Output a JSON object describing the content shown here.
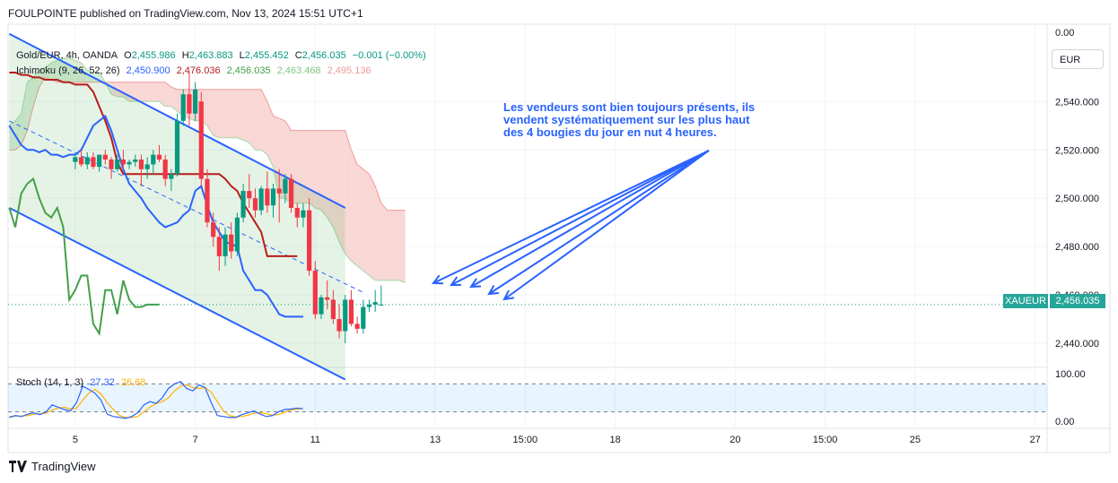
{
  "header": {
    "published": "FOULPOINTE published on TradingView.com, Nov 13, 2024 15:51 UTC+1"
  },
  "legend": {
    "symbol": "Gold/EUR, 4h, OANDA",
    "o_label": "O",
    "o_value": "2,455.986",
    "h_label": "H",
    "h_value": "2,463.883",
    "l_label": "L",
    "l_value": "2,455.452",
    "c_label": "C",
    "c_value": "2,456.035",
    "change": "−0.001 (−0.00%)",
    "ichimoku": "Ichimoku (9, 26, 52, 26)",
    "ichimoku_values": [
      "2,450.900",
      "2,476.036",
      "2,456.035",
      "2,463.468",
      "2,495.136"
    ],
    "stoch": "Stoch (14, 1, 3)",
    "stoch_values": [
      "27.32",
      "26.68"
    ]
  },
  "currency_button": "EUR",
  "price_tag": {
    "symbol": "XAUEUR",
    "value": "2,456.035"
  },
  "annotation": "Les vendeurs sont bien toujours présents, ils vendent systématiquement sur les plus haut des 4 bougies du jour en nut 4 heures.",
  "footer": {
    "brand": "TradingView"
  },
  "colors": {
    "up": "#089981",
    "down": "#f23645",
    "tenkan": "#2962ff",
    "kijun": "#b71c1c",
    "chikou": "#43a047",
    "cloud_bear": "#f8d7d5",
    "cloud_bull": "#d9ecd8",
    "stoch_k": "#2962ff",
    "stoch_d": "#ffb300",
    "accent": "#2962ff"
  },
  "chart_data": {
    "type": "candlestick",
    "main_price_axis": {
      "ticks": [
        "2,540.000",
        "2,520.000",
        "2,500.000",
        "2,480.000",
        "2,460.000",
        "2,440.000"
      ],
      "top_label": "0.00",
      "range": [
        2430,
        2572
      ]
    },
    "stoch_axis": {
      "ticks": [
        "100.00",
        "0.00"
      ],
      "band": [
        20,
        80
      ]
    },
    "time_axis": {
      "labels": [
        {
          "t": 0,
          "label": "5"
        },
        {
          "t": 20,
          "label": "7"
        },
        {
          "t": 40,
          "label": "11"
        },
        {
          "t": 60,
          "label": "13"
        },
        {
          "t": 75,
          "label": "15:00"
        },
        {
          "t": 90,
          "label": "18"
        },
        {
          "t": 110,
          "label": "20"
        },
        {
          "t": 125,
          "label": "15:00"
        },
        {
          "t": 140,
          "label": "25"
        },
        {
          "t": 160,
          "label": "27"
        }
      ],
      "range": [
        -11.2,
        162
      ]
    },
    "candles": [
      [
        2515,
        2518,
        2512,
        2517
      ],
      [
        2517,
        2520,
        2513,
        2514
      ],
      [
        2514,
        2519,
        2512,
        2517
      ],
      [
        2517,
        2519,
        2512,
        2513
      ],
      [
        2513,
        2518,
        2511,
        2518
      ],
      [
        2518,
        2520,
        2514,
        2516
      ],
      [
        2516,
        2517,
        2508,
        2512
      ],
      [
        2512,
        2518,
        2511,
        2516
      ],
      [
        2516,
        2520,
        2512,
        2514
      ],
      [
        2514,
        2516,
        2512,
        2515
      ],
      [
        2515,
        2518,
        2513,
        2516
      ],
      [
        2516,
        2518,
        2505,
        2512
      ],
      [
        2512,
        2517,
        2508,
        2514
      ],
      [
        2514,
        2520,
        2510,
        2518
      ],
      [
        2518,
        2522,
        2515,
        2516
      ],
      [
        2516,
        2518,
        2505,
        2508
      ],
      [
        2508,
        2512,
        2503,
        2510
      ],
      [
        2510,
        2535,
        2509,
        2532
      ],
      [
        2532,
        2545,
        2530,
        2543
      ],
      [
        2543,
        2552,
        2530,
        2535
      ],
      [
        2535,
        2548,
        2532,
        2545
      ],
      [
        2540,
        2544,
        2505,
        2508
      ],
      [
        2508,
        2512,
        2488,
        2490
      ],
      [
        2490,
        2494,
        2480,
        2484
      ],
      [
        2484,
        2488,
        2470,
        2476
      ],
      [
        2476,
        2488,
        2472,
        2485
      ],
      [
        2485,
        2490,
        2475,
        2478
      ],
      [
        2478,
        2494,
        2476,
        2492
      ],
      [
        2492,
        2506,
        2490,
        2503
      ],
      [
        2503,
        2510,
        2496,
        2500
      ],
      [
        2500,
        2504,
        2492,
        2495
      ],
      [
        2495,
        2505,
        2493,
        2504
      ],
      [
        2504,
        2511,
        2494,
        2497
      ],
      [
        2497,
        2506,
        2492,
        2504
      ],
      [
        2504,
        2512,
        2490,
        2502
      ],
      [
        2502,
        2510,
        2498,
        2508
      ],
      [
        2508,
        2510,
        2494,
        2496
      ],
      [
        2496,
        2498,
        2488,
        2492
      ],
      [
        2492,
        2498,
        2488,
        2495
      ],
      [
        2495,
        2500,
        2468,
        2470
      ],
      [
        2470,
        2474,
        2450,
        2452
      ],
      [
        2452,
        2460,
        2450,
        2459
      ],
      [
        2459,
        2466,
        2454,
        2458
      ],
      [
        2458,
        2462,
        2448,
        2450
      ],
      [
        2450,
        2456,
        2442,
        2445
      ],
      [
        2445,
        2460,
        2440,
        2458
      ],
      [
        2458,
        2462,
        2447,
        2448
      ],
      [
        2448,
        2451,
        2444,
        2446
      ],
      [
        2446,
        2458,
        2444,
        2455
      ],
      [
        2455,
        2458,
        2453,
        2456
      ],
      [
        2456,
        2462,
        2453,
        2457
      ],
      [
        2456.0,
        2463.9,
        2455.5,
        2456.0
      ]
    ],
    "ichimoku": {
      "tenkan": [
        2530,
        2526,
        2522,
        2520,
        2520,
        2519,
        2520,
        2518,
        2518,
        2517,
        2518,
        2518,
        2520,
        2525,
        2530,
        2532,
        2534,
        2528,
        2520,
        2512,
        2506,
        2503,
        2500,
        2496,
        2493,
        2490,
        2488,
        2489,
        2490,
        2493,
        2495,
        2503,
        2505,
        2497,
        2490,
        2486,
        2482,
        2481,
        2480,
        2470,
        2466,
        2462,
        2462,
        2460,
        2456,
        2452,
        2451,
        2451,
        2451,
        2451
      ],
      "kijun": [
        2552,
        2552,
        2551,
        2551,
        2550,
        2550,
        2549,
        2549,
        2549,
        2548,
        2548,
        2547,
        2547,
        2547,
        2544,
        2538,
        2532,
        2525,
        2515,
        2510,
        2510,
        2510,
        2510,
        2510,
        2510,
        2510,
        2510,
        2510,
        2510,
        2510,
        2510,
        2510,
        2510,
        2510,
        2510,
        2510,
        2508,
        2505,
        2503,
        2498,
        2494,
        2490,
        2486,
        2476,
        2476,
        2476,
        2476,
        2476,
        2476
      ],
      "chikou": [
        2496,
        2488,
        2502,
        2506,
        2508,
        2500,
        2494,
        2492,
        2496,
        2488,
        2458,
        2462,
        2468,
        2468,
        2448,
        2444,
        2462,
        2462,
        2452,
        2466,
        2458,
        2455,
        2455,
        2456,
        2456,
        2456
      ],
      "senkou_a": [
        2530,
        2532,
        2535,
        2548,
        2550,
        2553,
        2554,
        2556,
        2557,
        2558,
        2558,
        2557,
        2556,
        2553,
        2552,
        2552,
        2548,
        2543,
        2542,
        2542,
        2540,
        2540,
        2540,
        2540,
        2540,
        2540,
        2538,
        2538,
        2536,
        2534,
        2533,
        2532,
        2532,
        2530,
        2526,
        2525,
        2525,
        2525,
        2525,
        2524,
        2523,
        2520,
        2520,
        2518,
        2513,
        2500,
        2500,
        2498,
        2498,
        2498,
        2498,
        2496,
        2495,
        2492,
        2488,
        2482,
        2477,
        2474,
        2472,
        2470,
        2468,
        2466,
        2466,
        2466,
        2466,
        2466,
        2465
      ],
      "senkou_b": [
        2520,
        2520,
        2522,
        2528,
        2538,
        2546,
        2550,
        2549,
        2548,
        2548,
        2548,
        2548,
        2548,
        2548,
        2548,
        2548,
        2548,
        2548,
        2548,
        2548,
        2548,
        2548,
        2548,
        2548,
        2548,
        2548,
        2548,
        2546,
        2545,
        2545,
        2545,
        2545,
        2545,
        2545,
        2545,
        2545,
        2545,
        2545,
        2545,
        2545,
        2545,
        2545,
        2545,
        2540,
        2534,
        2533,
        2532,
        2528,
        2528,
        2528,
        2528,
        2528,
        2528,
        2528,
        2528,
        2528,
        2528,
        2520,
        2514,
        2512,
        2510,
        2505,
        2498,
        2495,
        2495,
        2495,
        2495
      ]
    },
    "channel": {
      "upper": [
        [
          -11,
          2568
        ],
        [
          45,
          2496
        ]
      ],
      "lower": [
        [
          -11,
          2496
        ],
        [
          45,
          2425
        ]
      ],
      "mid": [
        [
          -11,
          2532
        ],
        [
          48,
          2461
        ]
      ]
    },
    "stochastic": {
      "k": [
        8,
        12,
        10,
        15,
        18,
        14,
        20,
        35,
        30,
        25,
        22,
        40,
        75,
        68,
        60,
        45,
        15,
        10,
        8,
        6,
        10,
        18,
        35,
        42,
        38,
        50,
        70,
        80,
        85,
        70,
        65,
        78,
        72,
        40,
        12,
        10,
        8,
        8,
        14,
        18,
        22,
        15,
        10,
        12,
        20,
        25,
        26,
        28,
        27
      ],
      "d": [
        10,
        11,
        11,
        12,
        15,
        16,
        17,
        24,
        28,
        30,
        26,
        28,
        45,
        60,
        68,
        58,
        40,
        25,
        12,
        8,
        8,
        10,
        20,
        30,
        38,
        42,
        50,
        65,
        75,
        78,
        72,
        70,
        72,
        62,
        42,
        22,
        12,
        9,
        10,
        13,
        17,
        18,
        16,
        13,
        14,
        19,
        24,
        26,
        27
      ]
    }
  }
}
